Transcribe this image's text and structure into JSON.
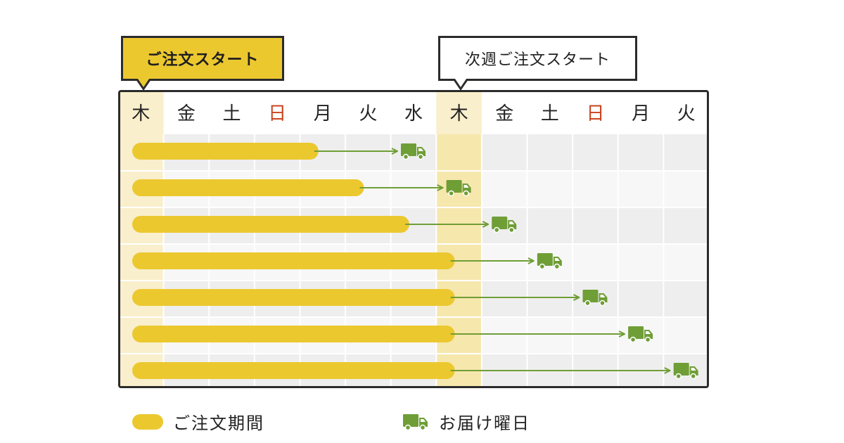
{
  "callouts": {
    "order_start": "ご注文スタート",
    "next_week_start": "次週ご注文スタート"
  },
  "days": [
    "木",
    "金",
    "土",
    "日",
    "月",
    "火",
    "水",
    "木",
    "金",
    "土",
    "日",
    "月",
    "火"
  ],
  "sunday_indices": [
    3,
    10
  ],
  "highlight_columns": [
    0,
    7
  ],
  "rows": [
    {
      "order_end_day": 4.5,
      "delivery_day": 6
    },
    {
      "order_end_day": 5.5,
      "delivery_day": 7
    },
    {
      "order_end_day": 6.5,
      "delivery_day": 8
    },
    {
      "order_end_day": 7.5,
      "delivery_day": 9
    },
    {
      "order_end_day": 7.5,
      "delivery_day": 10
    },
    {
      "order_end_day": 7.5,
      "delivery_day": 11
    },
    {
      "order_end_day": 7.5,
      "delivery_day": 12
    }
  ],
  "legend": {
    "order_period": "ご注文期間",
    "delivery_day": "お届け曜日"
  },
  "colors": {
    "bar": "#ecc82f",
    "highlight_col": "#f6e7ad",
    "highlight_col_light": "#f9efcc",
    "truck": "#6f9e36",
    "arrow": "#6f9e36",
    "sunday": "#c8441e",
    "text": "#222222",
    "border": "#2b2b2b"
  },
  "icons": {
    "delivery": "truck-icon"
  }
}
